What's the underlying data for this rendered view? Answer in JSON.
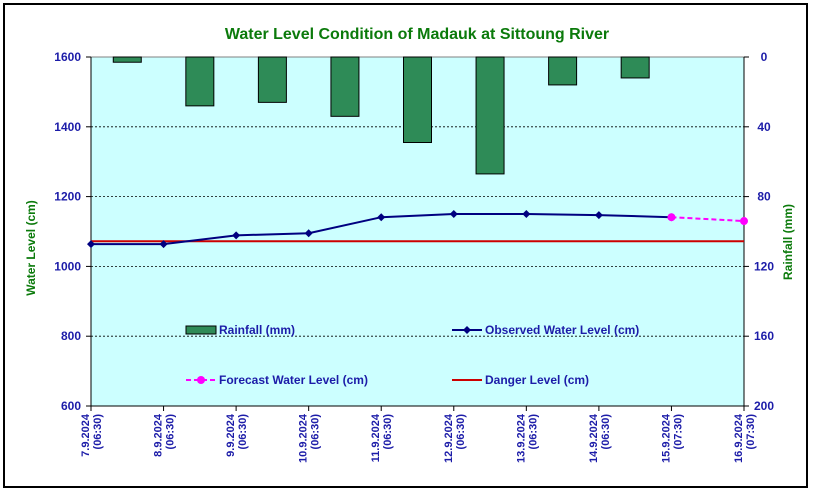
{
  "chart_data": {
    "type": "bar+line",
    "title": "Water Level Condition of Madauk at Sittoung River",
    "ylabel_left": "Water Level (cm)",
    "ylabel_right": "Rainfall (mm)",
    "ylim_left": [
      600,
      1600
    ],
    "yticks_left": [
      "1600",
      "1400",
      "1200",
      "1000",
      "800",
      "600"
    ],
    "ylim_right": [
      0,
      200
    ],
    "yticks_right": [
      "0",
      "40",
      "80",
      "120",
      "160",
      "200"
    ],
    "right_axis_inverted": true,
    "grid": true,
    "categories": [
      [
        "7.9.2024",
        "(06:30)"
      ],
      [
        "8.9.2024",
        "(06:30)"
      ],
      [
        "9.9.2024",
        "(06:30)"
      ],
      [
        "10.9.2024",
        "(06:30)"
      ],
      [
        "11.9.2024",
        "(06:30)"
      ],
      [
        "12.9.2024",
        "(06:30)"
      ],
      [
        "13.9.2024",
        "(06:30)"
      ],
      [
        "14.9.2024",
        "(06:30)"
      ],
      [
        "15.9.2024",
        "(07:30)"
      ],
      [
        "16.9.2024",
        "(07:30)"
      ]
    ],
    "series": [
      {
        "name": "Rainfall (mm)",
        "type": "bar",
        "axis": "right",
        "color": "#2e8b57",
        "values": [
          3,
          28,
          26,
          34,
          49,
          67,
          16,
          12,
          null,
          null
        ]
      },
      {
        "name": "Observed Water Level (cm)",
        "type": "line",
        "axis": "left",
        "color": "#000080",
        "marker": "diamond",
        "values": [
          1064,
          1064,
          1089,
          1095,
          1141,
          1150,
          1150,
          1147,
          1141,
          null
        ]
      },
      {
        "name": "Forecast Water Level (cm)",
        "type": "line",
        "axis": "left",
        "color": "#ff00ff",
        "marker": "circle",
        "dashed": true,
        "values": [
          null,
          null,
          null,
          null,
          null,
          null,
          null,
          null,
          1141,
          1130
        ]
      },
      {
        "name": "Danger Level (cm)",
        "type": "hline",
        "axis": "left",
        "color": "#cc0000",
        "value": 1072
      }
    ],
    "legend_placement": "inside-lower",
    "colors": {
      "plot_background": "#ccffff",
      "title": "#0b7a0b",
      "ticks": "#1c1ca8"
    }
  }
}
